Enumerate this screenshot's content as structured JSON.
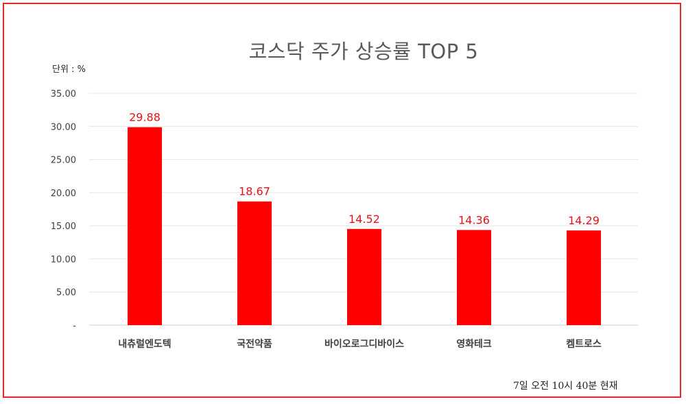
{
  "chart_data": {
    "type": "bar",
    "title": "코스닥 주가 상승률 TOP 5",
    "unit_label": "단위 : %",
    "footnote": "7일  오전 10시 40분 현재",
    "categories": [
      "내츄럴엔도텍",
      "국전약품",
      "바이오로그디바이스",
      "영화테크",
      "켐트로스"
    ],
    "values": [
      29.88,
      18.67,
      14.52,
      14.36,
      14.29
    ],
    "value_labels": [
      "29.88",
      "18.67",
      "14.52",
      "14.36",
      "14.29"
    ],
    "ylim": [
      0,
      35
    ],
    "yticks": [
      0,
      5,
      10,
      15,
      20,
      25,
      30,
      35
    ],
    "ytick_labels": [
      "-",
      "5.00",
      "10.00",
      "15.00",
      "20.00",
      "25.00",
      "30.00",
      "35.00"
    ],
    "grid": true,
    "bar_color": "#ff0000",
    "label_color": "#e8101a",
    "frame_color": "#e8262a"
  }
}
